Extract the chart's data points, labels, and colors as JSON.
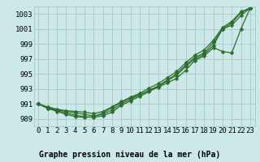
{
  "title": "Graphe pression niveau de la mer (hPa)",
  "bg_color": "#cce8e8",
  "grid_color": "#aacccc",
  "line_color": "#2d6e2d",
  "xlim": [
    -0.5,
    23.5
  ],
  "ylim": [
    988,
    1004
  ],
  "yticks": [
    989,
    991,
    993,
    995,
    997,
    999,
    1001,
    1003
  ],
  "xticks": [
    0,
    1,
    2,
    3,
    4,
    5,
    6,
    7,
    8,
    9,
    10,
    11,
    12,
    13,
    14,
    15,
    16,
    17,
    18,
    19,
    20,
    21,
    22,
    23
  ],
  "series": [
    [
      991.0,
      990.5,
      990.2,
      990.0,
      989.8,
      989.6,
      989.4,
      989.6,
      990.2,
      991.0,
      991.6,
      992.2,
      992.8,
      993.4,
      994.2,
      995.0,
      996.2,
      997.2,
      997.8,
      999.2,
      1001.0,
      1001.8,
      1003.2,
      1003.8
    ],
    [
      991.0,
      990.4,
      990.1,
      989.8,
      989.5,
      989.3,
      989.2,
      989.4,
      989.9,
      990.8,
      991.4,
      992.0,
      992.6,
      993.3,
      994.1,
      994.8,
      996.0,
      997.0,
      997.6,
      998.8,
      1001.0,
      1001.5,
      1002.8,
      1003.8
    ],
    [
      991.0,
      990.4,
      990.0,
      989.6,
      989.3,
      989.2,
      989.3,
      989.8,
      990.5,
      991.2,
      991.8,
      992.2,
      992.8,
      993.2,
      993.8,
      994.4,
      995.5,
      996.8,
      997.4,
      998.5,
      998.0,
      997.8,
      1001.0,
      1003.8
    ],
    [
      991.0,
      990.6,
      990.3,
      990.1,
      990.0,
      989.9,
      989.7,
      990.0,
      990.6,
      991.3,
      991.9,
      992.4,
      993.1,
      993.7,
      994.5,
      995.3,
      996.5,
      997.5,
      998.2,
      999.5,
      1001.2,
      1002.0,
      1003.3,
      1003.8
    ]
  ],
  "marker_size": 2.5,
  "linewidth": 0.9,
  "font_family": "monospace",
  "tick_fontsize": 6.5,
  "title_fontsize": 7.0
}
